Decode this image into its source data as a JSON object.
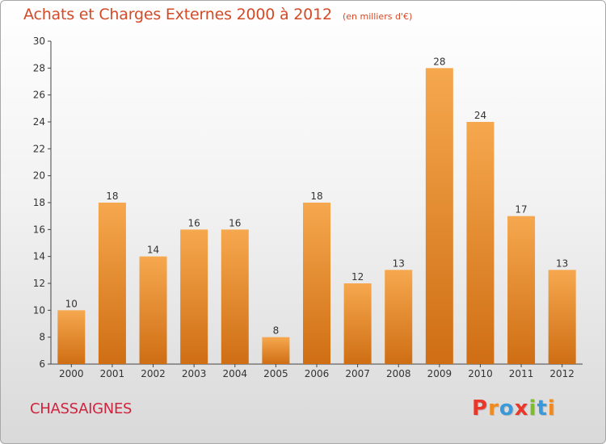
{
  "header": {
    "title": "Achats et Charges Externes 2000 à 2012",
    "subtitle": "(en milliers d'€)"
  },
  "footer": {
    "commune": "CHASSAIGNES",
    "logo_letters": [
      "P",
      "r",
      "o",
      "x",
      "i",
      "t",
      "i"
    ]
  },
  "colors": {
    "bar_top": "#f6a84e",
    "bar_bottom": "#cf6e14",
    "title": "#d34a27",
    "commune": "#d0233e",
    "logo": [
      "#e8382c",
      "#f08a1c",
      "#3a9ad9",
      "#e8382c",
      "#7dbb2f",
      "#3a9ad9",
      "#f08a1c"
    ]
  },
  "chart_data": {
    "type": "bar",
    "title": "Achats et Charges Externes 2000 à 2012",
    "subtitle": "(en milliers d'€)",
    "categories": [
      "2000",
      "2001",
      "2002",
      "2003",
      "2004",
      "2005",
      "2006",
      "2007",
      "2008",
      "2009",
      "2010",
      "2011",
      "2012"
    ],
    "values": [
      10,
      18,
      14,
      16,
      16,
      8,
      18,
      12,
      13,
      28,
      24,
      17,
      13
    ],
    "ylim": [
      6,
      30
    ],
    "yticks": [
      6,
      8,
      10,
      12,
      14,
      16,
      18,
      20,
      22,
      24,
      26,
      28,
      30
    ],
    "grid": false,
    "legend": "none"
  }
}
